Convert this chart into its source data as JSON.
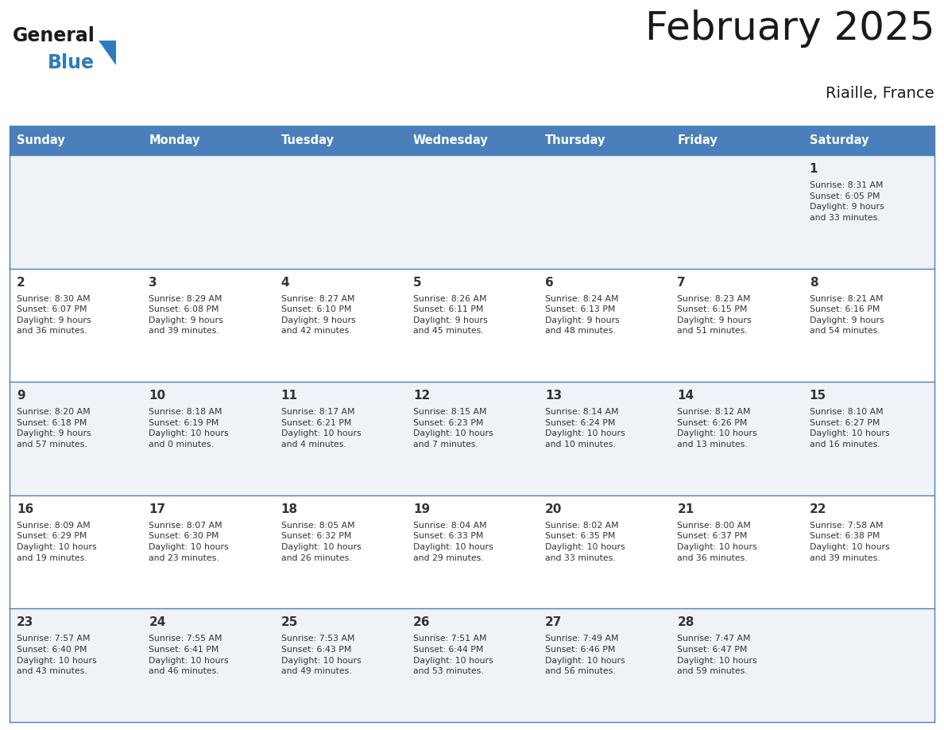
{
  "title": "February 2025",
  "subtitle": "Riaille, France",
  "header_bg": "#4a7fbc",
  "header_text": "#ffffff",
  "row_bg_odd": "#eff3f8",
  "row_bg_even": "#ffffff",
  "border_color": "#4a7fbc",
  "day_headers": [
    "Sunday",
    "Monday",
    "Tuesday",
    "Wednesday",
    "Thursday",
    "Friday",
    "Saturday"
  ],
  "text_color": "#333333",
  "day_num_color": "#333333",
  "logo_black": "#1a1a1a",
  "logo_blue": "#2e7bbf",
  "weeks": [
    [
      {
        "day": "",
        "info": ""
      },
      {
        "day": "",
        "info": ""
      },
      {
        "day": "",
        "info": ""
      },
      {
        "day": "",
        "info": ""
      },
      {
        "day": "",
        "info": ""
      },
      {
        "day": "",
        "info": ""
      },
      {
        "day": "1",
        "info": "Sunrise: 8:31 AM\nSunset: 6:05 PM\nDaylight: 9 hours\nand 33 minutes."
      }
    ],
    [
      {
        "day": "2",
        "info": "Sunrise: 8:30 AM\nSunset: 6:07 PM\nDaylight: 9 hours\nand 36 minutes."
      },
      {
        "day": "3",
        "info": "Sunrise: 8:29 AM\nSunset: 6:08 PM\nDaylight: 9 hours\nand 39 minutes."
      },
      {
        "day": "4",
        "info": "Sunrise: 8:27 AM\nSunset: 6:10 PM\nDaylight: 9 hours\nand 42 minutes."
      },
      {
        "day": "5",
        "info": "Sunrise: 8:26 AM\nSunset: 6:11 PM\nDaylight: 9 hours\nand 45 minutes."
      },
      {
        "day": "6",
        "info": "Sunrise: 8:24 AM\nSunset: 6:13 PM\nDaylight: 9 hours\nand 48 minutes."
      },
      {
        "day": "7",
        "info": "Sunrise: 8:23 AM\nSunset: 6:15 PM\nDaylight: 9 hours\nand 51 minutes."
      },
      {
        "day": "8",
        "info": "Sunrise: 8:21 AM\nSunset: 6:16 PM\nDaylight: 9 hours\nand 54 minutes."
      }
    ],
    [
      {
        "day": "9",
        "info": "Sunrise: 8:20 AM\nSunset: 6:18 PM\nDaylight: 9 hours\nand 57 minutes."
      },
      {
        "day": "10",
        "info": "Sunrise: 8:18 AM\nSunset: 6:19 PM\nDaylight: 10 hours\nand 0 minutes."
      },
      {
        "day": "11",
        "info": "Sunrise: 8:17 AM\nSunset: 6:21 PM\nDaylight: 10 hours\nand 4 minutes."
      },
      {
        "day": "12",
        "info": "Sunrise: 8:15 AM\nSunset: 6:23 PM\nDaylight: 10 hours\nand 7 minutes."
      },
      {
        "day": "13",
        "info": "Sunrise: 8:14 AM\nSunset: 6:24 PM\nDaylight: 10 hours\nand 10 minutes."
      },
      {
        "day": "14",
        "info": "Sunrise: 8:12 AM\nSunset: 6:26 PM\nDaylight: 10 hours\nand 13 minutes."
      },
      {
        "day": "15",
        "info": "Sunrise: 8:10 AM\nSunset: 6:27 PM\nDaylight: 10 hours\nand 16 minutes."
      }
    ],
    [
      {
        "day": "16",
        "info": "Sunrise: 8:09 AM\nSunset: 6:29 PM\nDaylight: 10 hours\nand 19 minutes."
      },
      {
        "day": "17",
        "info": "Sunrise: 8:07 AM\nSunset: 6:30 PM\nDaylight: 10 hours\nand 23 minutes."
      },
      {
        "day": "18",
        "info": "Sunrise: 8:05 AM\nSunset: 6:32 PM\nDaylight: 10 hours\nand 26 minutes."
      },
      {
        "day": "19",
        "info": "Sunrise: 8:04 AM\nSunset: 6:33 PM\nDaylight: 10 hours\nand 29 minutes."
      },
      {
        "day": "20",
        "info": "Sunrise: 8:02 AM\nSunset: 6:35 PM\nDaylight: 10 hours\nand 33 minutes."
      },
      {
        "day": "21",
        "info": "Sunrise: 8:00 AM\nSunset: 6:37 PM\nDaylight: 10 hours\nand 36 minutes."
      },
      {
        "day": "22",
        "info": "Sunrise: 7:58 AM\nSunset: 6:38 PM\nDaylight: 10 hours\nand 39 minutes."
      }
    ],
    [
      {
        "day": "23",
        "info": "Sunrise: 7:57 AM\nSunset: 6:40 PM\nDaylight: 10 hours\nand 43 minutes."
      },
      {
        "day": "24",
        "info": "Sunrise: 7:55 AM\nSunset: 6:41 PM\nDaylight: 10 hours\nand 46 minutes."
      },
      {
        "day": "25",
        "info": "Sunrise: 7:53 AM\nSunset: 6:43 PM\nDaylight: 10 hours\nand 49 minutes."
      },
      {
        "day": "26",
        "info": "Sunrise: 7:51 AM\nSunset: 6:44 PM\nDaylight: 10 hours\nand 53 minutes."
      },
      {
        "day": "27",
        "info": "Sunrise: 7:49 AM\nSunset: 6:46 PM\nDaylight: 10 hours\nand 56 minutes."
      },
      {
        "day": "28",
        "info": "Sunrise: 7:47 AM\nSunset: 6:47 PM\nDaylight: 10 hours\nand 59 minutes."
      },
      {
        "day": "",
        "info": ""
      }
    ]
  ]
}
